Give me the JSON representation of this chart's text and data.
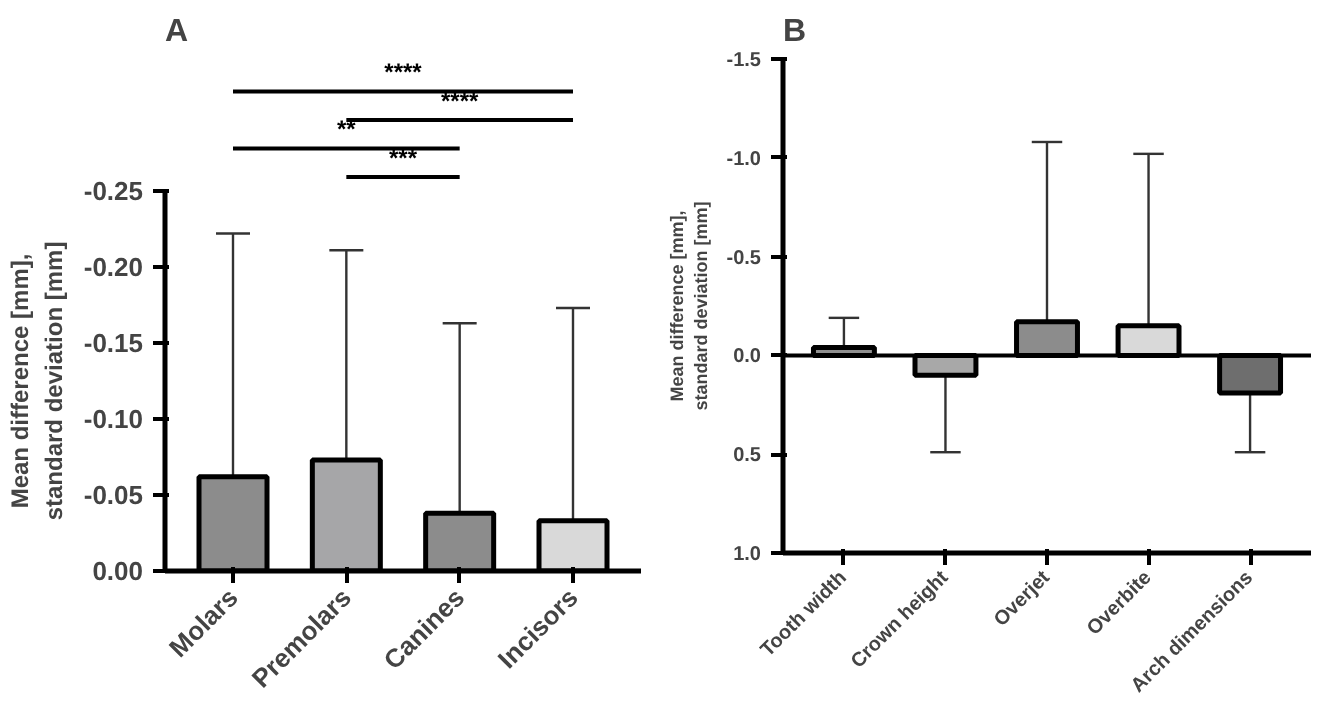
{
  "chart_data": [
    {
      "type": "bar",
      "title": "A",
      "ylabel": "Mean difference [mm],\nstandard deviation [mm]",
      "categories": [
        "Molars",
        "Premolars",
        "Canines",
        "Incisors"
      ],
      "values": [
        -0.062,
        -0.073,
        -0.038,
        -0.033
      ],
      "colors": [
        "#8c8c8c",
        "#a6a6a8",
        "#8c8c8c",
        "#d9d9d9"
      ],
      "errors": [
        [
          -0.222,
          -0.062
        ],
        [
          -0.211,
          -0.073
        ],
        [
          -0.163,
          -0.038
        ],
        [
          -0.173,
          -0.033
        ]
      ],
      "ylim": [
        0.0,
        -0.25
      ],
      "yticks": [
        {
          "value": 0,
          "label": "0.00"
        },
        -0.05,
        {
          "value": -0.1,
          "label": "-0.10"
        },
        -0.15,
        {
          "value": -0.2,
          "label": "-0.20"
        },
        -0.25
      ],
      "annotations": [
        "****",
        "****",
        "**",
        "***"
      ],
      "grid": false
    },
    {
      "type": "bar",
      "title": "B",
      "ylabel": "Mean difference [mm],\nstandard deviation [mm]",
      "categories": [
        "Tooth width",
        "Crown height",
        "Overjet",
        "Overbite",
        "Arch dimensions"
      ],
      "values": [
        -0.04,
        0.1,
        -0.17,
        -0.15,
        0.19
      ],
      "colors": [
        "#909090",
        "#a8a8a8",
        "#8c8c8c",
        "#d9d9d9",
        "#6e6e6e"
      ],
      "errors": [
        [
          -0.19,
          -0.04
        ],
        [
          0.1,
          0.49
        ],
        [
          -1.08,
          -0.17
        ],
        [
          -1.02,
          -0.15
        ],
        [
          0.19,
          0.49
        ]
      ],
      "ylim": [
        1.0,
        -1.5
      ],
      "yticks": [
        {
          "value": 1,
          "label": "1.0"
        },
        0.5,
        {
          "value": 0,
          "label": "0.0"
        },
        -0.5,
        {
          "value": -1,
          "label": "-1.0"
        },
        -1.5
      ],
      "ref_lines": [
        {
          "axis": "y",
          "value": 0
        }
      ],
      "grid": false
    }
  ]
}
